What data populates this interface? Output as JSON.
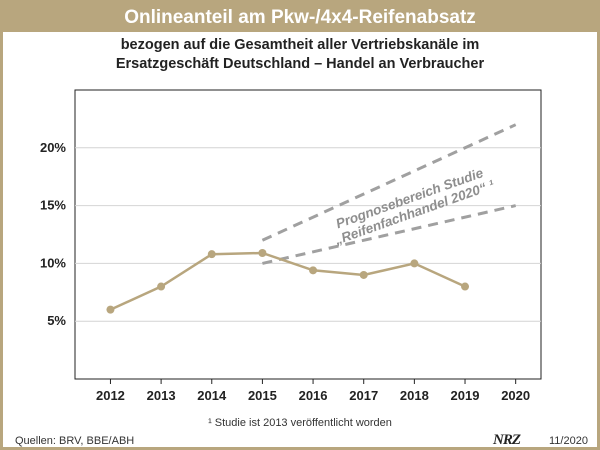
{
  "chart_data": {
    "type": "line",
    "title": "Onlineanteil am Pkw-/4x4-Reifenabsatz",
    "subtitle_line1": "bezogen auf die Gesamtheit aller Vertriebskanäle im",
    "subtitle_line2": "Ersatzgeschäft Deutschland – Handel an Verbraucher",
    "categories": [
      "2012",
      "2013",
      "2014",
      "2015",
      "2016",
      "2017",
      "2018",
      "2019",
      "2020"
    ],
    "x": [
      2012,
      2013,
      2014,
      2015,
      2016,
      2017,
      2018,
      2019
    ],
    "values": [
      6.0,
      8.0,
      10.8,
      10.9,
      9.4,
      9.0,
      10.0,
      8.0
    ],
    "xlim": [
      2011.3,
      2020.5
    ],
    "ylim": [
      0,
      25
    ],
    "yticks": [
      5,
      10,
      15,
      20
    ],
    "ytick_labels": [
      "5%",
      "10%",
      "15%",
      "20%"
    ],
    "grid": true,
    "forecast": {
      "label_line1": "Prognosebereich Studie",
      "label_line2": "„Reifenfachhandel 2020“ ¹",
      "upper": {
        "x": [
          2015,
          2020
        ],
        "values": [
          12,
          22
        ]
      },
      "lower": {
        "x": [
          2015,
          2020
        ],
        "values": [
          10,
          15
        ]
      }
    },
    "colors": {
      "line": "#b8a67e",
      "forecast": "#a0a0a0",
      "grid": "#d4d4d4",
      "frame": "#b8a67e"
    }
  },
  "footer": {
    "footnote": "¹ Studie ist 2013 veröffentlicht worden",
    "sources": "Quellen: BRV, BBE/ABH",
    "logo": "NRZ",
    "date": "11/2020"
  }
}
